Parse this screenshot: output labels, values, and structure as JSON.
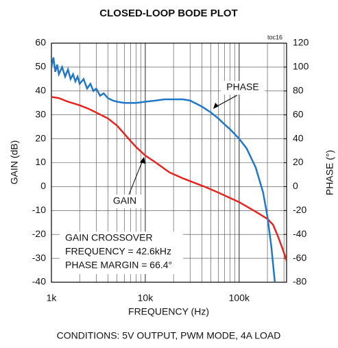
{
  "chart_data": {
    "type": "line",
    "title": "CLOSED-LOOP BODE PLOT",
    "xlabel": "FREQUENCY (Hz)",
    "ylabel": "GAIN (dB)",
    "y2label": "PHASE (°)",
    "log_x": true,
    "grid": true,
    "xlim": [
      1000,
      320000
    ],
    "xticks": [
      {
        "value": 1000,
        "label": "1k"
      },
      {
        "value": 10000,
        "label": "10k"
      },
      {
        "value": 100000,
        "label": "100k"
      }
    ],
    "ylim": [
      -40,
      60
    ],
    "yticks": [
      -40,
      -30,
      -20,
      -10,
      0,
      10,
      20,
      30,
      40,
      50,
      60
    ],
    "y2lim": [
      -80,
      120
    ],
    "y2ticks": [
      -80,
      -60,
      -40,
      -20,
      0,
      20,
      40,
      60,
      80,
      100,
      120
    ],
    "series": [
      {
        "name": "GAIN",
        "color": "#e8231e",
        "x": [
          1000,
          1200,
          1500,
          2000,
          2500,
          3000,
          4000,
          5000,
          6000,
          7000,
          8000,
          10000,
          13000,
          18000,
          25000,
          42600,
          60000,
          100000,
          150000,
          200000,
          230000,
          260000,
          290000,
          320000
        ],
        "values": [
          37.5,
          37,
          35.5,
          34,
          32.5,
          31,
          28.5,
          25.5,
          22,
          19,
          16.5,
          13,
          10,
          6,
          3.5,
          0,
          -2.5,
          -6.5,
          -10.5,
          -13.5,
          -16,
          -21,
          -26,
          -31
        ]
      },
      {
        "name": "PHASE",
        "color": "#1f77c8",
        "axis": "y2",
        "x": [
          1000,
          1050,
          1100,
          1150,
          1200,
          1300,
          1400,
          1500,
          1600,
          1700,
          1800,
          1900,
          2000,
          2200,
          2400,
          2600,
          2800,
          3000,
          3300,
          3600,
          4000,
          4500,
          5000,
          6000,
          7000,
          8000,
          10000,
          13000,
          16000,
          20000,
          25000,
          30000,
          40000,
          50000,
          60000,
          70000,
          80000,
          100000,
          120000,
          150000,
          180000,
          200000,
          220000,
          240000
        ],
        "values": [
          100,
          108,
          96,
          102,
          94,
          100,
          92,
          98,
          90,
          94,
          88,
          92,
          86,
          90,
          82,
          86,
          80,
          82,
          76,
          78,
          74,
          72,
          71,
          70,
          70,
          70,
          71,
          72,
          73,
          73,
          73,
          72,
          67,
          62,
          57,
          52,
          48,
          40,
          32,
          16,
          -5,
          -25,
          -50,
          -80
        ]
      }
    ],
    "annotations": [
      "toc16",
      "GAIN CROSSOVER",
      "FREQUENCY = 42.6kHz",
      "PHASE MARGIN = 66.4°"
    ],
    "footnote": "CONDITIONS: 5V OUTPUT, PWM MODE, 4A LOAD"
  }
}
